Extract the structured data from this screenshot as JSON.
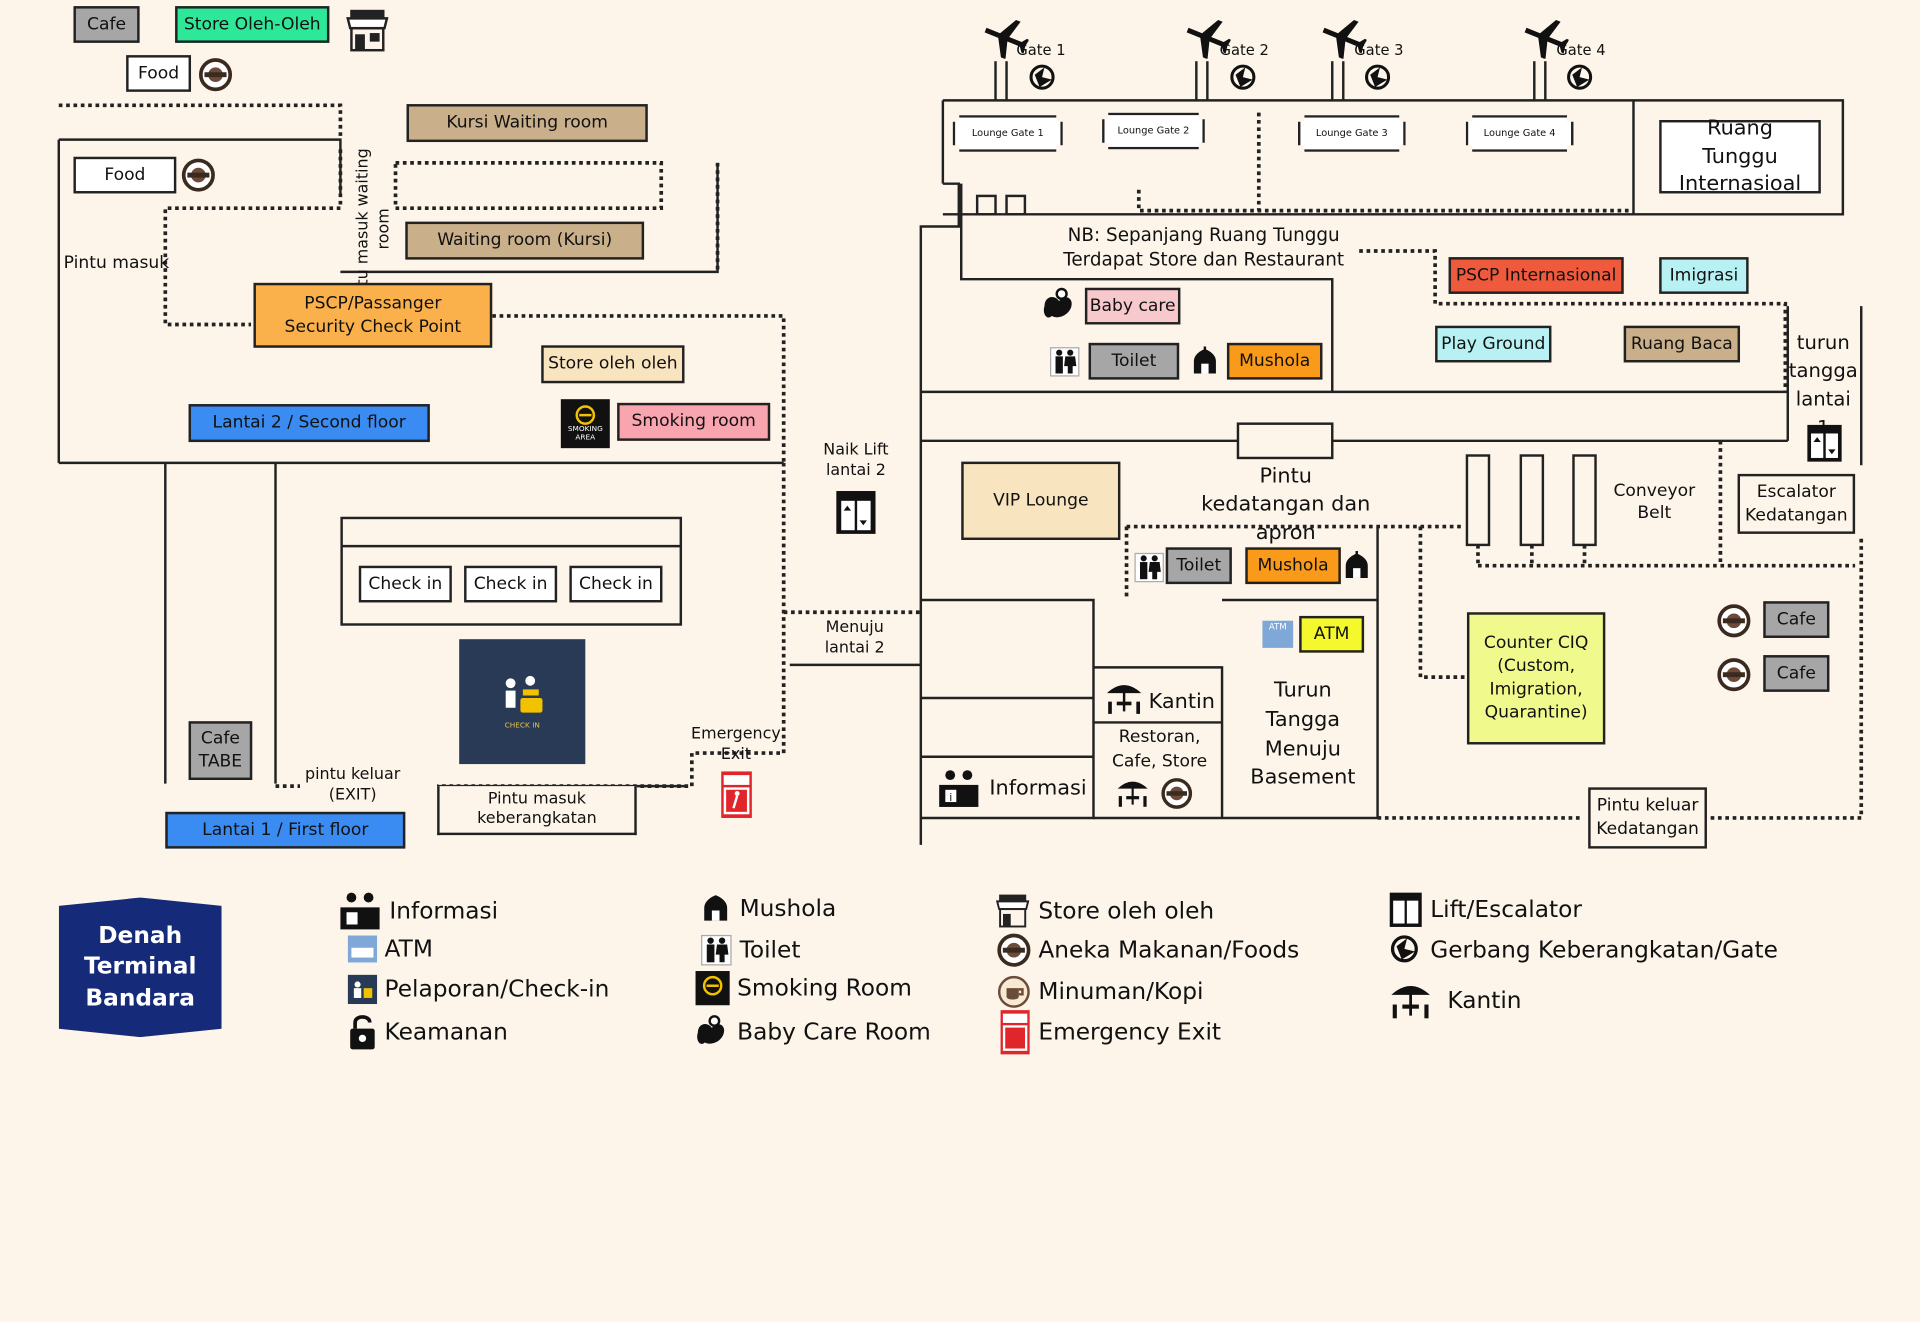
{
  "colors": {
    "bg": "#fdf5ea",
    "grey": "#a6a6a6",
    "green": "#2ee89a",
    "tan": "#c9b08a",
    "orange": "#fbb14b",
    "blue": "#3b8cf2",
    "cream": "#f8e4be",
    "pink": "#f8a5b0",
    "red": "#f05a3c",
    "mint": "#b7f1f3",
    "gold": "#fa9a1a",
    "yellow": "#f0f98c",
    "navy": "#152a78"
  },
  "top_left": {
    "cafe": "Cafe",
    "store_oleh": "Store Oleh-Oleh",
    "food_top": "Food"
  },
  "second_floor": {
    "kursi_waiting": "Kursi Waiting room",
    "food": "Food",
    "pintu_masuk_waiting": "Pintu masuk waiting room",
    "waiting_kursi": "Waiting room (Kursi)",
    "pintu_masuk": "Pintu masuk",
    "pscp": "PSCP/Passanger Security Check Point",
    "store_oleh": "Store oleh oleh",
    "lantai2": "Lantai 2 / Second floor",
    "smoking_room": "Smoking room",
    "smoking_icon_text": "SMOKING AREA"
  },
  "first_floor": {
    "checkins": [
      "Check in",
      "Check in",
      "Check in"
    ],
    "checkin_icon_text": "CHECK IN",
    "cafe_tabe": "Cafe TABE",
    "pintu_keluar_exit": "pintu keluar (EXIT)",
    "lantai1": "Lantai 1 / First floor",
    "pintu_masuk_keberangkatan": "Pintu masuk keberangkatan",
    "emergency_exit": "Emergency Exit",
    "naik_lift": "Naik Lift lantai 2",
    "menuju_lantai2": "Menuju lantai 2"
  },
  "gates": {
    "items": [
      "Gate 1",
      "Gate 2",
      "Gate 3",
      "Gate 4"
    ],
    "lounges": [
      "Lounge Gate 1",
      "Lounge Gate 2",
      "Lounge Gate 3",
      "Lounge Gate 4"
    ]
  },
  "departure": {
    "ruang_tunggu_intl": "Ruang Tunggu Internasioal",
    "nb": "NB: Sepanjang Ruang Tunggu Terdapat Store dan Restaurant",
    "pscp_intl": "PSCP Internasional",
    "imigrasi": "Imigrasi",
    "baby_care": "Baby care",
    "toilet": "Toilet",
    "mushola": "Mushola",
    "play_ground": "Play Ground",
    "ruang_baca": "Ruang Baca",
    "turun_tangga": "turun tangga lantai 1"
  },
  "arrival": {
    "vip_lounge": "VIP Lounge",
    "pintu_kedatangan": "Pintu kedatangan dan apron",
    "conveyor": "Conveyor Belt",
    "escalator": "Escalator Kedatangan",
    "toilet": "Toilet",
    "mushola": "Mushola",
    "atm": "ATM",
    "atm_icon_text": "ATM",
    "turun_basement": "Turun Tangga Menuju Basement",
    "kantin": "Kantin",
    "restoran": "Restoran, Cafe, Store",
    "informasi": "Informasi",
    "counter_ciq": "Counter CIQ (Custom, Imigration, Quarantine)",
    "cafe1": "Cafe",
    "cafe2": "Cafe",
    "pintu_keluar_kedatangan": "Pintu keluar Kedatangan"
  },
  "title_badge": "Denah Terminal Bandara",
  "legend": {
    "col1": [
      "Informasi",
      "ATM",
      "Pelaporan/Check-in",
      "Keamanan"
    ],
    "col2": [
      "Mushola",
      "Toilet",
      "Smoking Room",
      "Baby Care Room"
    ],
    "col3": [
      "Store oleh oleh",
      "Aneka Makanan/Foods",
      "Minuman/Kopi",
      "Emergency Exit"
    ],
    "col4": [
      "Lift/Escalator",
      "Gerbang Keberangkatan/Gate",
      "Kantin"
    ]
  },
  "icon_names": [
    "store-icon",
    "food-icon",
    "airplane-icon",
    "gate-icon",
    "lift-icon",
    "smoking-icon",
    "checkin-icon",
    "emergency-exit-icon",
    "baby-care-icon",
    "toilet-icon",
    "mushola-icon",
    "atm-icon",
    "informasi-icon",
    "kantin-icon",
    "coffee-icon",
    "keamanan-icon"
  ]
}
